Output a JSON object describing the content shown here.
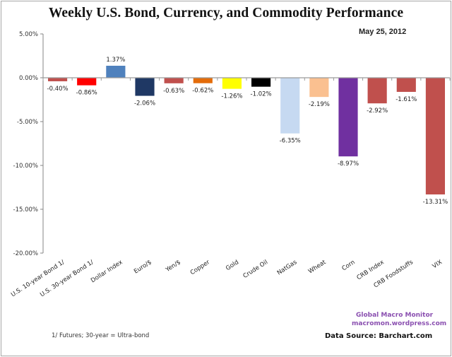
{
  "chart_data": {
    "type": "bar",
    "title": "Weekly U.S. Bond, Currency, and Commodity Performance",
    "subtitle": "May 25, 2012",
    "xlabel": "",
    "ylabel": "",
    "ylim": [
      -20,
      5
    ],
    "yticks": [
      5,
      0,
      -5,
      -10,
      -15,
      -20
    ],
    "ytick_labels": [
      "5.00%",
      "0.00%",
      "-5.00%",
      "-10.00%",
      "-15.00%",
      "-20.00%"
    ],
    "grid": false,
    "legend": "none",
    "categories": [
      "U.S. 10-year Bond 1/",
      "U.S. 30-year Bond 1/",
      "Dollar Index",
      "Euro/$",
      "Yen/$",
      "Copper",
      "Gold",
      "Crude Oil",
      "NatGas",
      "Wheat",
      "Corn",
      "CRB Index",
      "CRB Foodstuffs",
      "VIX"
    ],
    "values": [
      -0.4,
      -0.86,
      1.37,
      -2.06,
      -0.63,
      -0.62,
      -1.26,
      -1.02,
      -6.35,
      -2.19,
      -8.97,
      -2.92,
      -1.61,
      -13.31
    ],
    "data_labels": [
      "-0.40%",
      "-0.86%",
      "1.37%",
      "-2.06%",
      "-0.63%",
      "-0.62%",
      "-1.26%",
      "-1.02%",
      "-6.35%",
      "-2.19%",
      "-8.97%",
      "-2.92%",
      "-1.61%",
      "-13.31%"
    ],
    "colors": [
      "#c0504d",
      "#ff0000",
      "#4f81bd",
      "#1f3864",
      "#c0504d",
      "#e46c0a",
      "#ffff00",
      "#000000",
      "#c6d9f1",
      "#fac090",
      "#7030a0",
      "#c0504d",
      "#c0504d",
      "#c0504d"
    ],
    "annotations": [
      "Global Macro Monitor",
      "macromon.wordpress.com",
      "Data Source:  Barchart.com",
      "1/ Futures; 30-year = Ultra-bond"
    ]
  },
  "header": {
    "title": "Weekly U.S. Bond, Currency, and Commodity Performance",
    "date": "May 25, 2012"
  },
  "footer": {
    "brand_name": "Global Macro Monitor",
    "brand_url": "macromon.wordpress.com",
    "source": "Data Source:  Barchart.com",
    "footnote": "1/ Futures; 30-year = Ultra-bond"
  }
}
